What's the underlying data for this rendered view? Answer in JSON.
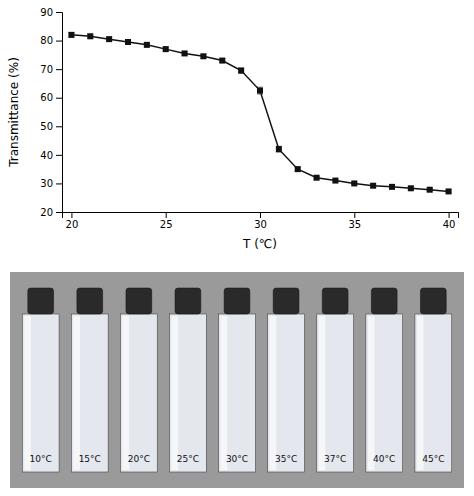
{
  "chart_data": {
    "type": "line",
    "x_label": "T (℃)",
    "y_label": "Transmittance (%)",
    "x": [
      20,
      21,
      22,
      23,
      24,
      25,
      26,
      27,
      28,
      29,
      30,
      31,
      32,
      33,
      34,
      35,
      36,
      37,
      38,
      39,
      40
    ],
    "series": [
      {
        "color": "#111111",
        "marker": "square",
        "line_style": "solid",
        "values": [
          82.0,
          81.5,
          80.5,
          79.5,
          78.5,
          77.0,
          75.5,
          74.5,
          73.0,
          69.5,
          62.5,
          42.0,
          35.0,
          32.0,
          31.0,
          30.0,
          29.2,
          28.8,
          28.3,
          27.8,
          27.2
        ],
        "error": [
          0.8,
          0.7,
          0.6,
          0.7,
          0.6,
          0.7,
          0.6,
          0.6,
          0.7,
          0.9,
          1.2,
          1.0,
          0.7,
          0.5,
          0.5,
          0.5,
          0.4,
          0.4,
          0.4,
          0.4,
          0.4
        ]
      }
    ],
    "xlim": [
      19.5,
      40.5
    ],
    "ylim": [
      20,
      90
    ],
    "xticks": [
      20,
      25,
      30,
      35,
      40
    ],
    "yticks": [
      20,
      30,
      40,
      50,
      60,
      70,
      80,
      90
    ],
    "grid": false,
    "annotations": [
      "10°C",
      "15°C",
      "20°C",
      "25°C",
      "30°C",
      "35°C",
      "37°C",
      "40°C",
      "45°C"
    ]
  }
}
